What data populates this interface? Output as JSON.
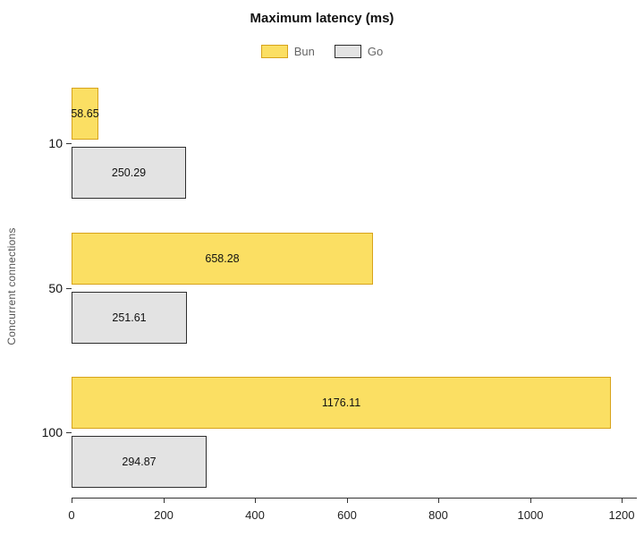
{
  "chart_data": {
    "type": "bar",
    "orientation": "horizontal",
    "title": "Maximum latency (ms)",
    "xlabel": "",
    "ylabel": "Concurrent connections",
    "categories": [
      "10",
      "50",
      "100"
    ],
    "series": [
      {
        "name": "Bun",
        "color": "#FBDF63",
        "border_color": "#D7A31B",
        "values": [
          58.65,
          658.28,
          1176.11
        ]
      },
      {
        "name": "Go",
        "color": "#E3E3E3",
        "border_color": "#2E2E2E",
        "values": [
          250.29,
          251.61,
          294.87
        ]
      }
    ],
    "x_ticks": [
      0,
      200,
      400,
      600,
      800,
      1000,
      1200
    ],
    "xlim": [
      0,
      1200
    ],
    "legend_position": "top-center",
    "grid": false,
    "bar_labels_visible": true
  }
}
